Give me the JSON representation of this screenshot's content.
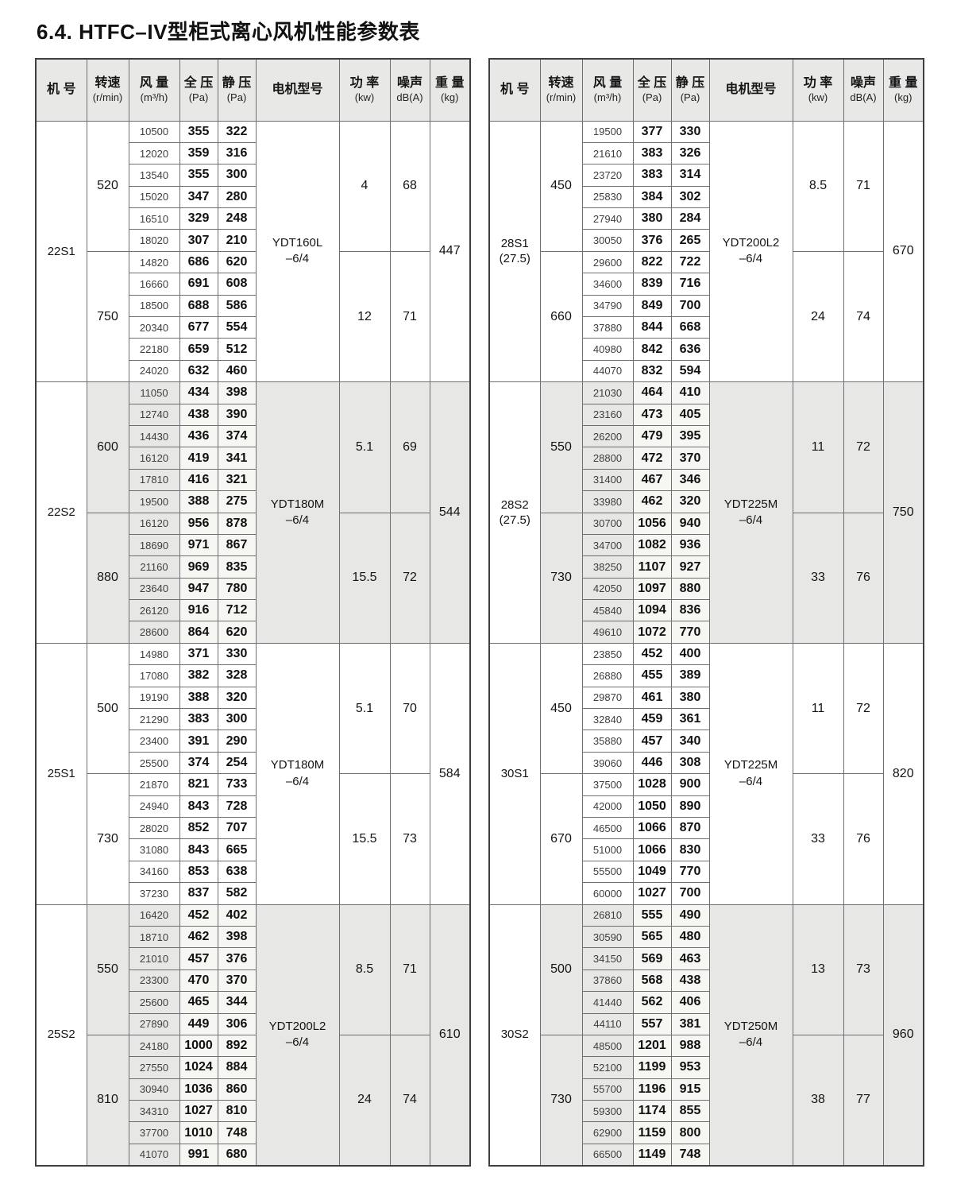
{
  "title": "6.4. HTFC–IV型柜式离心风机性能参数表",
  "columns": [
    {
      "l1": "机 号",
      "l2": ""
    },
    {
      "l1": "转速",
      "l2": "(r/min)"
    },
    {
      "l1": "风 量",
      "l2": "(m³/h)"
    },
    {
      "l1": "全 压",
      "l2": "(Pa)"
    },
    {
      "l1": "静 压",
      "l2": "(Pa)"
    },
    {
      "l1": "电机型号",
      "l2": ""
    },
    {
      "l1": "功 率",
      "l2": "(kw)"
    },
    {
      "l1": "噪声",
      "l2": "dB(A)"
    },
    {
      "l1": "重 量",
      "l2": "(kg)"
    }
  ],
  "tables": [
    {
      "blocks": [
        {
          "model": [
            "22S1"
          ],
          "motor": [
            "YDT160L",
            "–6/4"
          ],
          "weight": "447",
          "shaded": false,
          "groups": [
            {
              "speed": "520",
              "power": "4",
              "noise": "68",
              "rows": [
                [
                  10500,
                  355,
                  322
                ],
                [
                  12020,
                  359,
                  316
                ],
                [
                  13540,
                  355,
                  300
                ],
                [
                  15020,
                  347,
                  280
                ],
                [
                  16510,
                  329,
                  248
                ],
                [
                  18020,
                  307,
                  210
                ]
              ]
            },
            {
              "speed": "750",
              "power": "12",
              "noise": "71",
              "rows": [
                [
                  14820,
                  686,
                  620
                ],
                [
                  16660,
                  691,
                  608
                ],
                [
                  18500,
                  688,
                  586
                ],
                [
                  20340,
                  677,
                  554
                ],
                [
                  22180,
                  659,
                  512
                ],
                [
                  24020,
                  632,
                  460
                ]
              ]
            }
          ]
        },
        {
          "model": [
            "22S2"
          ],
          "motor": [
            "YDT180M",
            "–6/4"
          ],
          "weight": "544",
          "shaded": true,
          "groups": [
            {
              "speed": "600",
              "power": "5.1",
              "noise": "69",
              "rows": [
                [
                  11050,
                  434,
                  398
                ],
                [
                  12740,
                  438,
                  390
                ],
                [
                  14430,
                  436,
                  374
                ],
                [
                  16120,
                  419,
                  341
                ],
                [
                  17810,
                  416,
                  321
                ],
                [
                  19500,
                  388,
                  275
                ]
              ]
            },
            {
              "speed": "880",
              "power": "15.5",
              "noise": "72",
              "rows": [
                [
                  16120,
                  956,
                  878
                ],
                [
                  18690,
                  971,
                  867
                ],
                [
                  21160,
                  969,
                  835
                ],
                [
                  23640,
                  947,
                  780
                ],
                [
                  26120,
                  916,
                  712
                ],
                [
                  28600,
                  864,
                  620
                ]
              ]
            }
          ]
        },
        {
          "model": [
            "25S1"
          ],
          "motor": [
            "YDT180M",
            "–6/4"
          ],
          "weight": "584",
          "shaded": false,
          "groups": [
            {
              "speed": "500",
              "power": "5.1",
              "noise": "70",
              "rows": [
                [
                  14980,
                  371,
                  330
                ],
                [
                  17080,
                  382,
                  328
                ],
                [
                  19190,
                  388,
                  320
                ],
                [
                  21290,
                  383,
                  300
                ],
                [
                  23400,
                  391,
                  290
                ],
                [
                  25500,
                  374,
                  254
                ]
              ]
            },
            {
              "speed": "730",
              "power": "15.5",
              "noise": "73",
              "rows": [
                [
                  21870,
                  821,
                  733
                ],
                [
                  24940,
                  843,
                  728
                ],
                [
                  28020,
                  852,
                  707
                ],
                [
                  31080,
                  843,
                  665
                ],
                [
                  34160,
                  853,
                  638
                ],
                [
                  37230,
                  837,
                  582
                ]
              ]
            }
          ]
        },
        {
          "model": [
            "25S2"
          ],
          "motor": [
            "YDT200L2",
            "–6/4"
          ],
          "weight": "610",
          "shaded": true,
          "groups": [
            {
              "speed": "550",
              "power": "8.5",
              "noise": "71",
              "rows": [
                [
                  16420,
                  452,
                  402
                ],
                [
                  18710,
                  462,
                  398
                ],
                [
                  21010,
                  457,
                  376
                ],
                [
                  23300,
                  470,
                  370
                ],
                [
                  25600,
                  465,
                  344
                ],
                [
                  27890,
                  449,
                  306
                ]
              ]
            },
            {
              "speed": "810",
              "power": "24",
              "noise": "74",
              "rows": [
                [
                  24180,
                  1000,
                  892
                ],
                [
                  27550,
                  1024,
                  884
                ],
                [
                  30940,
                  1036,
                  860
                ],
                [
                  34310,
                  1027,
                  810
                ],
                [
                  37700,
                  1010,
                  748
                ],
                [
                  41070,
                  991,
                  680
                ]
              ]
            }
          ]
        }
      ]
    },
    {
      "blocks": [
        {
          "model": [
            "28S1",
            "(27.5)"
          ],
          "motor": [
            "YDT200L2",
            "–6/4"
          ],
          "weight": "670",
          "shaded": false,
          "groups": [
            {
              "speed": "450",
              "power": "8.5",
              "noise": "71",
              "rows": [
                [
                  19500,
                  377,
                  330
                ],
                [
                  21610,
                  383,
                  326
                ],
                [
                  23720,
                  383,
                  314
                ],
                [
                  25830,
                  384,
                  302
                ],
                [
                  27940,
                  380,
                  284
                ],
                [
                  30050,
                  376,
                  265
                ]
              ]
            },
            {
              "speed": "660",
              "power": "24",
              "noise": "74",
              "rows": [
                [
                  29600,
                  822,
                  722
                ],
                [
                  34600,
                  839,
                  716
                ],
                [
                  34790,
                  849,
                  700
                ],
                [
                  37880,
                  844,
                  668
                ],
                [
                  40980,
                  842,
                  636
                ],
                [
                  44070,
                  832,
                  594
                ]
              ]
            }
          ]
        },
        {
          "model": [
            "28S2",
            "(27.5)"
          ],
          "motor": [
            "YDT225M",
            "–6/4"
          ],
          "weight": "750",
          "shaded": true,
          "groups": [
            {
              "speed": "550",
              "power": "11",
              "noise": "72",
              "rows": [
                [
                  21030,
                  464,
                  410
                ],
                [
                  23160,
                  473,
                  405
                ],
                [
                  26200,
                  479,
                  395
                ],
                [
                  28800,
                  472,
                  370
                ],
                [
                  31400,
                  467,
                  346
                ],
                [
                  33980,
                  462,
                  320
                ]
              ]
            },
            {
              "speed": "730",
              "power": "33",
              "noise": "76",
              "rows": [
                [
                  30700,
                  1056,
                  940
                ],
                [
                  34700,
                  1082,
                  936
                ],
                [
                  38250,
                  1107,
                  927
                ],
                [
                  42050,
                  1097,
                  880
                ],
                [
                  45840,
                  1094,
                  836
                ],
                [
                  49610,
                  1072,
                  770
                ]
              ]
            }
          ]
        },
        {
          "model": [
            "30S1"
          ],
          "motor": [
            "YDT225M",
            "–6/4"
          ],
          "weight": "820",
          "shaded": false,
          "groups": [
            {
              "speed": "450",
              "power": "11",
              "noise": "72",
              "rows": [
                [
                  23850,
                  452,
                  400
                ],
                [
                  26880,
                  455,
                  389
                ],
                [
                  29870,
                  461,
                  380
                ],
                [
                  32840,
                  459,
                  361
                ],
                [
                  35880,
                  457,
                  340
                ],
                [
                  39060,
                  446,
                  308
                ]
              ]
            },
            {
              "speed": "670",
              "power": "33",
              "noise": "76",
              "rows": [
                [
                  37500,
                  1028,
                  900
                ],
                [
                  42000,
                  1050,
                  890
                ],
                [
                  46500,
                  1066,
                  870
                ],
                [
                  51000,
                  1066,
                  830
                ],
                [
                  55500,
                  1049,
                  770
                ],
                [
                  60000,
                  1027,
                  700
                ]
              ]
            }
          ]
        },
        {
          "model": [
            "30S2"
          ],
          "motor": [
            "YDT250M",
            "–6/4"
          ],
          "weight": "960",
          "shaded": true,
          "groups": [
            {
              "speed": "500",
              "power": "13",
              "noise": "73",
              "rows": [
                [
                  26810,
                  555,
                  490
                ],
                [
                  30590,
                  565,
                  480
                ],
                [
                  34150,
                  569,
                  463
                ],
                [
                  37860,
                  568,
                  438
                ],
                [
                  41440,
                  562,
                  406
                ],
                [
                  44110,
                  557,
                  381
                ]
              ]
            },
            {
              "speed": "730",
              "power": "38",
              "noise": "77",
              "rows": [
                [
                  48500,
                  1201,
                  988
                ],
                [
                  52100,
                  1199,
                  953
                ],
                [
                  55700,
                  1196,
                  915
                ],
                [
                  59300,
                  1174,
                  855
                ],
                [
                  62900,
                  1159,
                  800
                ],
                [
                  66500,
                  1149,
                  748
                ]
              ]
            }
          ]
        }
      ]
    }
  ]
}
